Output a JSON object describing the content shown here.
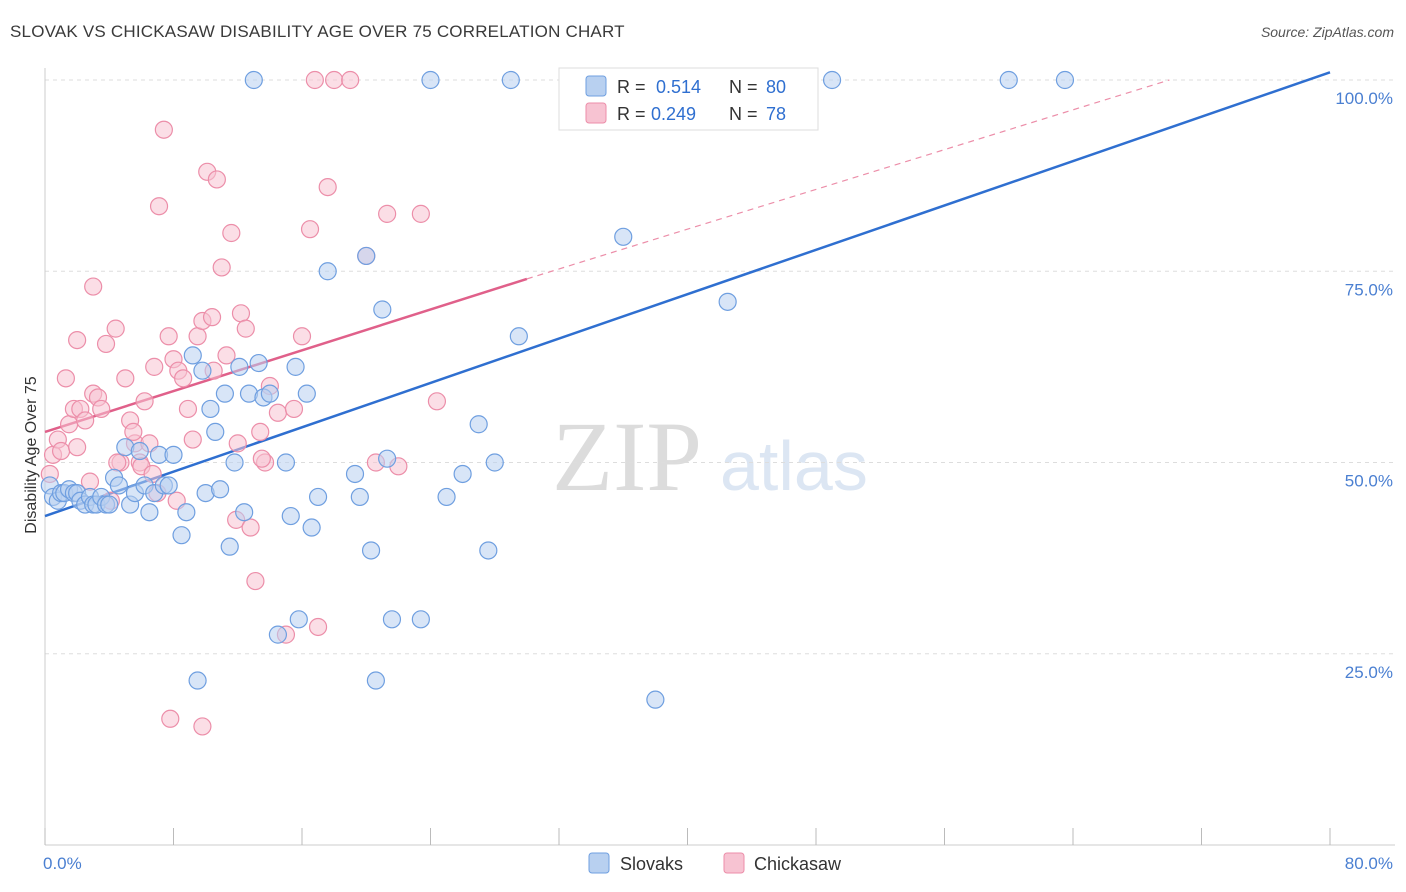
{
  "header": {
    "title": "SLOVAK VS CHICKASAW DISABILITY AGE OVER 75 CORRELATION CHART",
    "source": "Source: ZipAtlas.com"
  },
  "watermark": {
    "zip": "ZIP",
    "atlas": "atlas"
  },
  "legend_top": {
    "slovak": {
      "r_label": "R =",
      "r_value": "0.514",
      "n_label": "N =",
      "n_value": "80"
    },
    "chickasaw": {
      "r_label": "R =",
      "r_value": "0.249",
      "n_label": "N =",
      "n_value": "78"
    }
  },
  "legend_bottom": {
    "slovaks": "Slovaks",
    "chickasaw": "Chickasaw"
  },
  "colors": {
    "blue_fill": "#b8d0f0",
    "blue_stroke": "#6f9fe0",
    "blue_line": "#2f6fd0",
    "pink_fill": "#f7c3d2",
    "pink_stroke": "#ec8ea9",
    "pink_line": "#e0608a",
    "grid": "#dddddd",
    "tick_text": "#4a7fd1"
  },
  "chart_data": {
    "type": "scatter",
    "title": "SLOVAK VS CHICKASAW DISABILITY AGE OVER 75 CORRELATION CHART",
    "xlabel": "",
    "ylabel": "Disability Age Over 75",
    "xlim": [
      0,
      80
    ],
    "ylim": [
      0,
      100
    ],
    "x_tick_labels": [
      "0.0%",
      "80.0%"
    ],
    "y_ticks": [
      25,
      50,
      75,
      100
    ],
    "y_tick_labels": [
      "25.0%",
      "50.0%",
      "75.0%",
      "100.0%"
    ],
    "grid": true,
    "series": [
      {
        "name": "Slovaks",
        "r": 0.514,
        "n": 80,
        "trend": {
          "x": [
            0,
            80
          ],
          "y": [
            43,
            101
          ]
        },
        "points": [
          [
            0.3,
            47.0
          ],
          [
            0.5,
            45.5
          ],
          [
            0.8,
            45.0
          ],
          [
            1.0,
            46.0
          ],
          [
            1.2,
            46.0
          ],
          [
            1.5,
            46.5
          ],
          [
            1.8,
            46.0
          ],
          [
            2.0,
            46.0
          ],
          [
            2.2,
            45.0
          ],
          [
            2.5,
            44.5
          ],
          [
            2.8,
            45.5
          ],
          [
            3.0,
            44.5
          ],
          [
            3.2,
            44.5
          ],
          [
            3.5,
            45.5
          ],
          [
            3.8,
            44.5
          ],
          [
            4.0,
            44.5
          ],
          [
            4.3,
            48.0
          ],
          [
            4.6,
            47.0
          ],
          [
            5.0,
            52.0
          ],
          [
            5.3,
            44.5
          ],
          [
            5.6,
            46.0
          ],
          [
            5.9,
            51.5
          ],
          [
            6.2,
            47.0
          ],
          [
            6.5,
            43.5
          ],
          [
            6.8,
            46.0
          ],
          [
            7.1,
            51.0
          ],
          [
            7.4,
            47.0
          ],
          [
            7.7,
            47.0
          ],
          [
            8.0,
            51.0
          ],
          [
            8.5,
            40.5
          ],
          [
            8.8,
            43.5
          ],
          [
            9.2,
            64.0
          ],
          [
            9.5,
            21.5
          ],
          [
            9.8,
            62.0
          ],
          [
            10.0,
            46.0
          ],
          [
            10.3,
            57.0
          ],
          [
            10.6,
            54.0
          ],
          [
            10.9,
            46.5
          ],
          [
            11.2,
            59.0
          ],
          [
            11.5,
            39.0
          ],
          [
            11.8,
            50.0
          ],
          [
            12.1,
            62.5
          ],
          [
            12.4,
            43.5
          ],
          [
            12.7,
            59.0
          ],
          [
            13.0,
            100
          ],
          [
            13.3,
            63.0
          ],
          [
            13.6,
            58.5
          ],
          [
            14.0,
            59.0
          ],
          [
            14.5,
            27.5
          ],
          [
            15.0,
            50.0
          ],
          [
            15.3,
            43.0
          ],
          [
            15.6,
            62.5
          ],
          [
            15.8,
            29.5
          ],
          [
            16.3,
            59.0
          ],
          [
            16.6,
            41.5
          ],
          [
            17.0,
            45.5
          ],
          [
            17.6,
            75.0
          ],
          [
            19.3,
            48.5
          ],
          [
            19.6,
            45.5
          ],
          [
            20.0,
            77.0
          ],
          [
            20.3,
            38.5
          ],
          [
            20.6,
            21.5
          ],
          [
            21.0,
            70.0
          ],
          [
            21.3,
            50.5
          ],
          [
            21.6,
            29.5
          ],
          [
            23.4,
            29.5
          ],
          [
            24.0,
            100
          ],
          [
            25.0,
            45.5
          ],
          [
            26.0,
            48.5
          ],
          [
            27.0,
            55.0
          ],
          [
            27.6,
            38.5
          ],
          [
            28.0,
            50.0
          ],
          [
            29.0,
            100
          ],
          [
            29.5,
            66.5
          ],
          [
            36.0,
            79.5
          ],
          [
            38.0,
            19.0
          ],
          [
            42.5,
            71.0
          ],
          [
            49.0,
            100
          ],
          [
            60.0,
            100
          ],
          [
            63.5,
            100
          ]
        ]
      },
      {
        "name": "Chickasaw",
        "r": 0.249,
        "n": 78,
        "trend": {
          "x": [
            0,
            30
          ],
          "y": [
            54,
            74
          ]
        },
        "trend_dashed": {
          "x": [
            30,
            70
          ],
          "y": [
            74,
            100
          ]
        },
        "points": [
          [
            0.3,
            48.5
          ],
          [
            0.5,
            51.0
          ],
          [
            0.8,
            53.0
          ],
          [
            1.0,
            51.5
          ],
          [
            1.3,
            61.0
          ],
          [
            1.5,
            55.0
          ],
          [
            1.8,
            57.0
          ],
          [
            2.0,
            52.0
          ],
          [
            2.2,
            57.0
          ],
          [
            2.5,
            55.5
          ],
          [
            2.8,
            47.5
          ],
          [
            3.0,
            59.0
          ],
          [
            3.3,
            58.5
          ],
          [
            3.5,
            57.0
          ],
          [
            3.8,
            65.5
          ],
          [
            4.1,
            45.0
          ],
          [
            4.4,
            67.5
          ],
          [
            4.7,
            50.0
          ],
          [
            5.0,
            61.0
          ],
          [
            5.3,
            55.5
          ],
          [
            5.6,
            52.5
          ],
          [
            5.9,
            50.0
          ],
          [
            6.2,
            58.0
          ],
          [
            6.5,
            52.5
          ],
          [
            6.8,
            62.5
          ],
          [
            7.1,
            83.5
          ],
          [
            7.4,
            93.5
          ],
          [
            7.7,
            66.5
          ],
          [
            8.0,
            63.5
          ],
          [
            8.3,
            62.0
          ],
          [
            8.6,
            61.0
          ],
          [
            8.9,
            57.0
          ],
          [
            9.2,
            53.0
          ],
          [
            9.5,
            66.5
          ],
          [
            9.8,
            68.5
          ],
          [
            10.1,
            88.0
          ],
          [
            10.4,
            69.0
          ],
          [
            10.7,
            87.0
          ],
          [
            11.0,
            75.5
          ],
          [
            11.3,
            64.0
          ],
          [
            11.6,
            80.0
          ],
          [
            11.9,
            42.5
          ],
          [
            12.2,
            69.5
          ],
          [
            12.5,
            67.5
          ],
          [
            12.8,
            41.5
          ],
          [
            13.1,
            34.5
          ],
          [
            13.4,
            54.0
          ],
          [
            13.7,
            50.0
          ],
          [
            14.0,
            60.0
          ],
          [
            14.5,
            56.5
          ],
          [
            15.0,
            27.5
          ],
          [
            15.5,
            57.0
          ],
          [
            16.0,
            66.5
          ],
          [
            16.5,
            80.5
          ],
          [
            17.0,
            28.5
          ],
          [
            17.6,
            86.0
          ],
          [
            18.0,
            100
          ],
          [
            19.0,
            100
          ],
          [
            20.0,
            77.0
          ],
          [
            20.6,
            50.0
          ],
          [
            21.3,
            82.5
          ],
          [
            22.0,
            49.5
          ],
          [
            23.4,
            82.5
          ],
          [
            24.4,
            58.0
          ],
          [
            7.8,
            16.5
          ],
          [
            9.8,
            15.5
          ],
          [
            2.0,
            66.0
          ],
          [
            3.0,
            73.0
          ],
          [
            4.5,
            50.0
          ],
          [
            5.5,
            54.0
          ],
          [
            6.0,
            49.5
          ],
          [
            6.7,
            48.5
          ],
          [
            7.0,
            46.0
          ],
          [
            8.2,
            45.0
          ],
          [
            10.5,
            62.0
          ],
          [
            12.0,
            52.5
          ],
          [
            13.5,
            50.5
          ],
          [
            16.8,
            100
          ]
        ]
      }
    ]
  }
}
